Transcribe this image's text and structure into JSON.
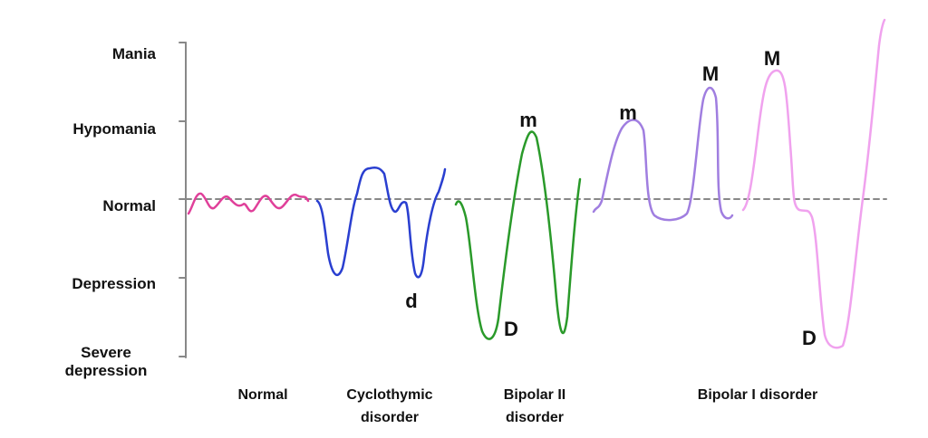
{
  "y_levels": [
    "Mania",
    "Hypomania",
    "Normal",
    "Depression",
    "Severe depression"
  ],
  "groups": [
    "Normal",
    "Cyclothymic disorder",
    "Bipolar II disorder",
    "Bipolar I disorder"
  ],
  "annotations": [
    "d",
    "D",
    "m",
    "m",
    "M",
    "M",
    "D"
  ]
}
